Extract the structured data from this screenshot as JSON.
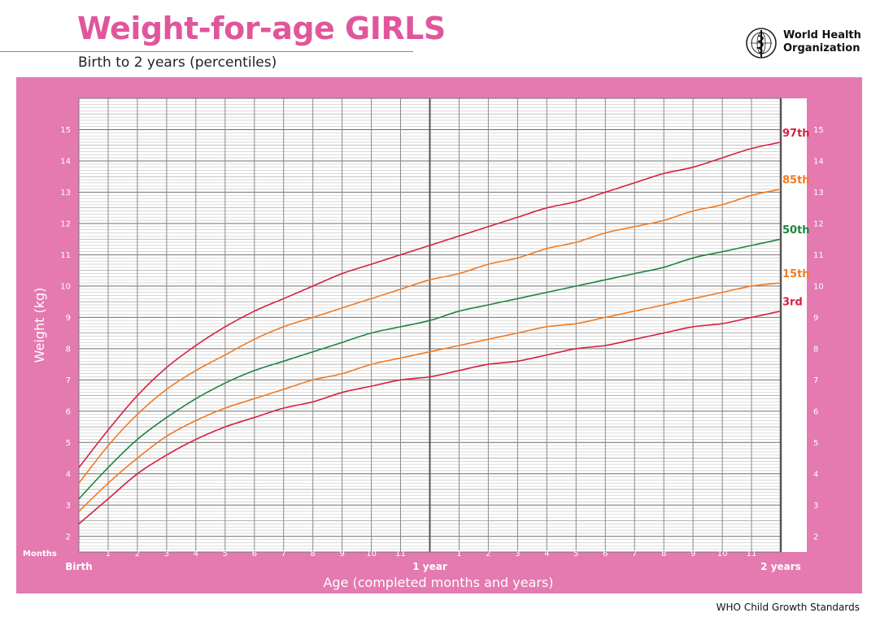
{
  "header": {
    "title": "Weight-for-age GIRLS",
    "subtitle": "Birth to 2 years (percentiles)",
    "org_name": "World Health Organization"
  },
  "footer": {
    "text": "WHO Child Growth Standards"
  },
  "colors": {
    "title": "#e1569b",
    "panel": "#e47aaf",
    "p3": "#d62040",
    "p15": "#f07a22",
    "p50": "#1e8440",
    "p85": "#f07a22",
    "p97": "#d62040"
  },
  "chart_data": {
    "type": "line",
    "title": "Weight-for-age GIRLS",
    "subtitle": "Birth to 2 years (percentiles)",
    "xlabel": "Age (completed months and years)",
    "ylabel": "Weight (kg)",
    "x_unit_label": "Months",
    "xlim": [
      0,
      24
    ],
    "ylim": [
      1.5,
      16
    ],
    "grid": true,
    "y_ticks": [
      2,
      3,
      4,
      5,
      6,
      7,
      8,
      9,
      10,
      11,
      12,
      13,
      14,
      15
    ],
    "x_tick_labels": [
      {
        "x": 0,
        "label": "Birth",
        "bold": true
      },
      {
        "x": 1,
        "label": "1"
      },
      {
        "x": 2,
        "label": "2"
      },
      {
        "x": 3,
        "label": "3"
      },
      {
        "x": 4,
        "label": "4"
      },
      {
        "x": 5,
        "label": "5"
      },
      {
        "x": 6,
        "label": "6"
      },
      {
        "x": 7,
        "label": "7"
      },
      {
        "x": 8,
        "label": "8"
      },
      {
        "x": 9,
        "label": "9"
      },
      {
        "x": 10,
        "label": "10"
      },
      {
        "x": 11,
        "label": "11"
      },
      {
        "x": 12,
        "label": "1 year",
        "bold": true
      },
      {
        "x": 13,
        "label": "1"
      },
      {
        "x": 14,
        "label": "2"
      },
      {
        "x": 15,
        "label": "3"
      },
      {
        "x": 16,
        "label": "4"
      },
      {
        "x": 17,
        "label": "5"
      },
      {
        "x": 18,
        "label": "6"
      },
      {
        "x": 19,
        "label": "7"
      },
      {
        "x": 20,
        "label": "8"
      },
      {
        "x": 21,
        "label": "9"
      },
      {
        "x": 22,
        "label": "10"
      },
      {
        "x": 23,
        "label": "11"
      },
      {
        "x": 24,
        "label": "2 years",
        "bold": true
      }
    ],
    "x": [
      0,
      1,
      2,
      3,
      4,
      5,
      6,
      7,
      8,
      9,
      10,
      11,
      12,
      13,
      14,
      15,
      16,
      17,
      18,
      19,
      20,
      21,
      22,
      23,
      24
    ],
    "series": [
      {
        "name": "97th",
        "color": "#d62040",
        "values": [
          4.2,
          5.4,
          6.5,
          7.4,
          8.1,
          8.7,
          9.2,
          9.6,
          10.0,
          10.4,
          10.7,
          11.0,
          11.3,
          11.6,
          11.9,
          12.2,
          12.5,
          12.7,
          13.0,
          13.3,
          13.6,
          13.8,
          14.1,
          14.4,
          14.6
        ]
      },
      {
        "name": "85th",
        "color": "#f07a22",
        "values": [
          3.7,
          4.9,
          5.9,
          6.7,
          7.3,
          7.8,
          8.3,
          8.7,
          9.0,
          9.3,
          9.6,
          9.9,
          10.2,
          10.4,
          10.7,
          10.9,
          11.2,
          11.4,
          11.7,
          11.9,
          12.1,
          12.4,
          12.6,
          12.9,
          13.1
        ]
      },
      {
        "name": "50th",
        "color": "#1e8440",
        "values": [
          3.2,
          4.2,
          5.1,
          5.8,
          6.4,
          6.9,
          7.3,
          7.6,
          7.9,
          8.2,
          8.5,
          8.7,
          8.9,
          9.2,
          9.4,
          9.6,
          9.8,
          10.0,
          10.2,
          10.4,
          10.6,
          10.9,
          11.1,
          11.3,
          11.5
        ]
      },
      {
        "name": "15th",
        "color": "#f07a22",
        "values": [
          2.8,
          3.7,
          4.5,
          5.2,
          5.7,
          6.1,
          6.4,
          6.7,
          7.0,
          7.2,
          7.5,
          7.7,
          7.9,
          8.1,
          8.3,
          8.5,
          8.7,
          8.8,
          9.0,
          9.2,
          9.4,
          9.6,
          9.8,
          10.0,
          10.1
        ]
      },
      {
        "name": "3rd",
        "color": "#d62040",
        "values": [
          2.4,
          3.2,
          4.0,
          4.6,
          5.1,
          5.5,
          5.8,
          6.1,
          6.3,
          6.6,
          6.8,
          7.0,
          7.1,
          7.3,
          7.5,
          7.6,
          7.8,
          8.0,
          8.1,
          8.3,
          8.5,
          8.7,
          8.8,
          9.0,
          9.2
        ]
      }
    ]
  }
}
